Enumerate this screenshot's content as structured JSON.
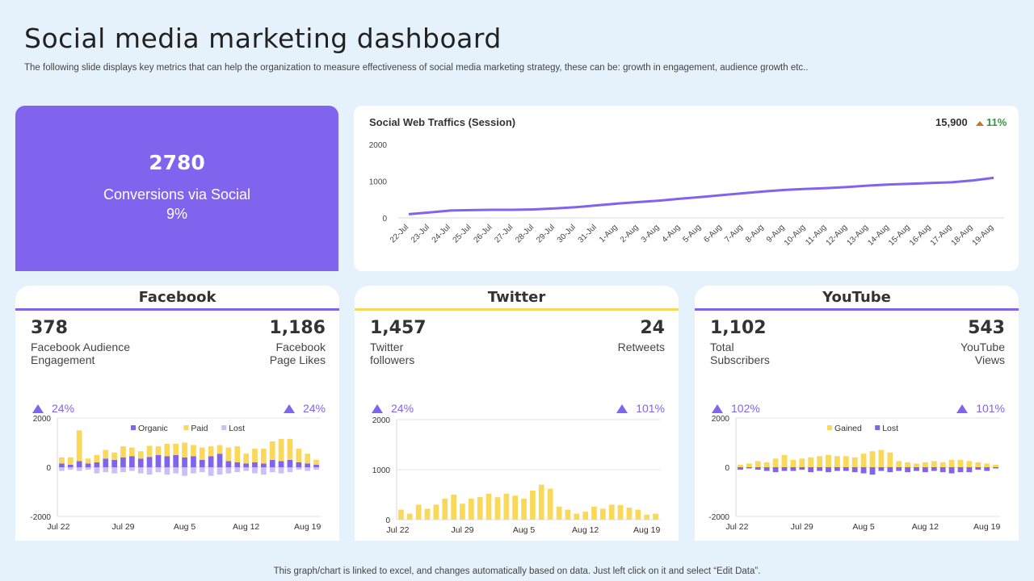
{
  "page": {
    "title": "Social media marketing dashboard",
    "subtitle": "The following slide displays key metrics that can help the organization to measure effectiveness of social media marketing strategy, these can be: growth in engagement, audience growth etc..",
    "footer": "This graph/chart is linked to excel,  and changes automatically based on data. Just left click on it and select “Edit Data”."
  },
  "conversions": {
    "value": "2780",
    "label": "Conversions via Social",
    "percent": "9%"
  },
  "traffic": {
    "title": "Social Web Traffics (Session)",
    "total": "15,900",
    "change": "11%"
  },
  "facebook": {
    "name": "Facebook",
    "m1": {
      "value": "378",
      "label1": "Facebook Audience",
      "label2": "Engagement",
      "delta": "24%"
    },
    "m2": {
      "value": "1,186",
      "label1": "Facebook",
      "label2": "Page Likes",
      "delta": "24%"
    }
  },
  "twitter": {
    "name": "Twitter",
    "m1": {
      "value": "1,457",
      "label1": "Twitter",
      "label2": "followers",
      "delta": "24%"
    },
    "m2": {
      "value": "24",
      "label1": "Retweets",
      "label2": "",
      "delta": "101%"
    }
  },
  "youtube": {
    "name": "YouTube",
    "m1": {
      "value": "1,102",
      "label1": "Total",
      "label2": "Subscribers",
      "delta": "102%"
    },
    "m2": {
      "value": "543",
      "label1": "YouTube",
      "label2": "Views",
      "delta": "101%"
    }
  },
  "colors": {
    "purple": "#8164ee",
    "yellow": "#f9d85a",
    "lost": "#c9c0f3",
    "green": "#2f9a3c"
  },
  "chart_data": [
    {
      "id": "traffic",
      "type": "line",
      "title": "Social Web Traffics (Session)",
      "categories": [
        "22-Jul",
        "23-Jul",
        "24-Jul",
        "25-Jul",
        "26-Jul",
        "27-Jul",
        "28-Jul",
        "29-Jul",
        "30-Jul",
        "31-Jul",
        "1-Aug",
        "2-Aug",
        "3-Aug",
        "4-Aug",
        "5-Aug",
        "6-Aug",
        "7-Aug",
        "8-Aug",
        "9-Aug",
        "10-Aug",
        "11-Aug",
        "12-Aug",
        "13-Aug",
        "14-Aug",
        "15-Aug",
        "16-Aug",
        "17-Aug",
        "18-Aug",
        "19-Aug"
      ],
      "values": [
        100,
        150,
        200,
        210,
        220,
        220,
        230,
        260,
        290,
        340,
        390,
        430,
        470,
        520,
        570,
        620,
        670,
        720,
        760,
        790,
        810,
        840,
        880,
        910,
        930,
        950,
        970,
        1020,
        1090
      ],
      "yticks": [
        0,
        1000,
        2000
      ],
      "ylim": [
        0,
        2000
      ],
      "color": "#8164ee"
    },
    {
      "id": "facebook",
      "type": "bar",
      "stacked": true,
      "xticks": [
        "Jul 22",
        "Jul 29",
        "Aug 5",
        "Aug 12",
        "Aug 19"
      ],
      "yticks": [
        -2000,
        0,
        2000
      ],
      "ylim": [
        -2000,
        2000
      ],
      "legend": [
        "Organic",
        "Paid",
        "Lost"
      ],
      "series": [
        {
          "name": "Organic",
          "color": "#8164ee",
          "values": [
            150,
            100,
            250,
            150,
            200,
            350,
            300,
            400,
            450,
            350,
            420,
            500,
            450,
            500,
            400,
            450,
            300,
            450,
            550,
            250,
            200,
            150,
            200,
            150,
            300,
            250,
            300,
            200,
            150,
            100
          ]
        },
        {
          "name": "Paid",
          "color": "#f9d85a",
          "values": [
            250,
            300,
            1250,
            200,
            300,
            350,
            300,
            450,
            350,
            300,
            450,
            350,
            500,
            450,
            600,
            450,
            500,
            400,
            350,
            550,
            650,
            400,
            550,
            600,
            750,
            900,
            850,
            550,
            400,
            200
          ]
        },
        {
          "name": "Lost",
          "color": "#c9c0f3",
          "values": [
            -150,
            -100,
            -150,
            -100,
            -250,
            -200,
            -250,
            -200,
            -150,
            -250,
            -300,
            -200,
            -300,
            -250,
            -350,
            -250,
            -200,
            -350,
            -300,
            -250,
            -200,
            -150,
            -250,
            -300,
            -200,
            -250,
            -200,
            -100,
            -150,
            -100
          ]
        }
      ]
    },
    {
      "id": "twitter",
      "type": "bar",
      "xticks": [
        "Jul 22",
        "Jul 29",
        "Aug 5",
        "Aug 12",
        "Aug 19"
      ],
      "yticks": [
        0,
        1000,
        2000
      ],
      "ylim": [
        0,
        2000
      ],
      "series": [
        {
          "name": "Followers",
          "color": "#f9d85a",
          "values": [
            200,
            120,
            300,
            220,
            300,
            420,
            500,
            320,
            420,
            450,
            520,
            450,
            520,
            480,
            420,
            580,
            700,
            620,
            260,
            200,
            120,
            160,
            260,
            220,
            300,
            290,
            240,
            200,
            100,
            120
          ]
        }
      ]
    },
    {
      "id": "youtube",
      "type": "bar",
      "xticks": [
        "Jul 22",
        "Jul 29",
        "Aug 5",
        "Aug 12",
        "Aug 19"
      ],
      "yticks": [
        -2000,
        0,
        2000
      ],
      "ylim": [
        -2000,
        2000
      ],
      "legend": [
        "Gained",
        "Lost"
      ],
      "series": [
        {
          "name": "Gained",
          "color": "#f9d85a",
          "values": [
            100,
            150,
            250,
            200,
            350,
            500,
            300,
            350,
            400,
            450,
            500,
            450,
            450,
            400,
            550,
            650,
            700,
            600,
            250,
            200,
            150,
            200,
            250,
            200,
            300,
            300,
            250,
            200,
            150,
            100
          ]
        },
        {
          "name": "Lost",
          "color": "#8164ee",
          "values": [
            -100,
            -50,
            -100,
            -150,
            -200,
            -150,
            -150,
            -100,
            -200,
            -150,
            -200,
            -150,
            -150,
            -200,
            -250,
            -300,
            -150,
            -200,
            -150,
            -200,
            -150,
            -200,
            -150,
            -200,
            -250,
            -200,
            -200,
            -100,
            -150,
            -50
          ]
        }
      ]
    }
  ]
}
